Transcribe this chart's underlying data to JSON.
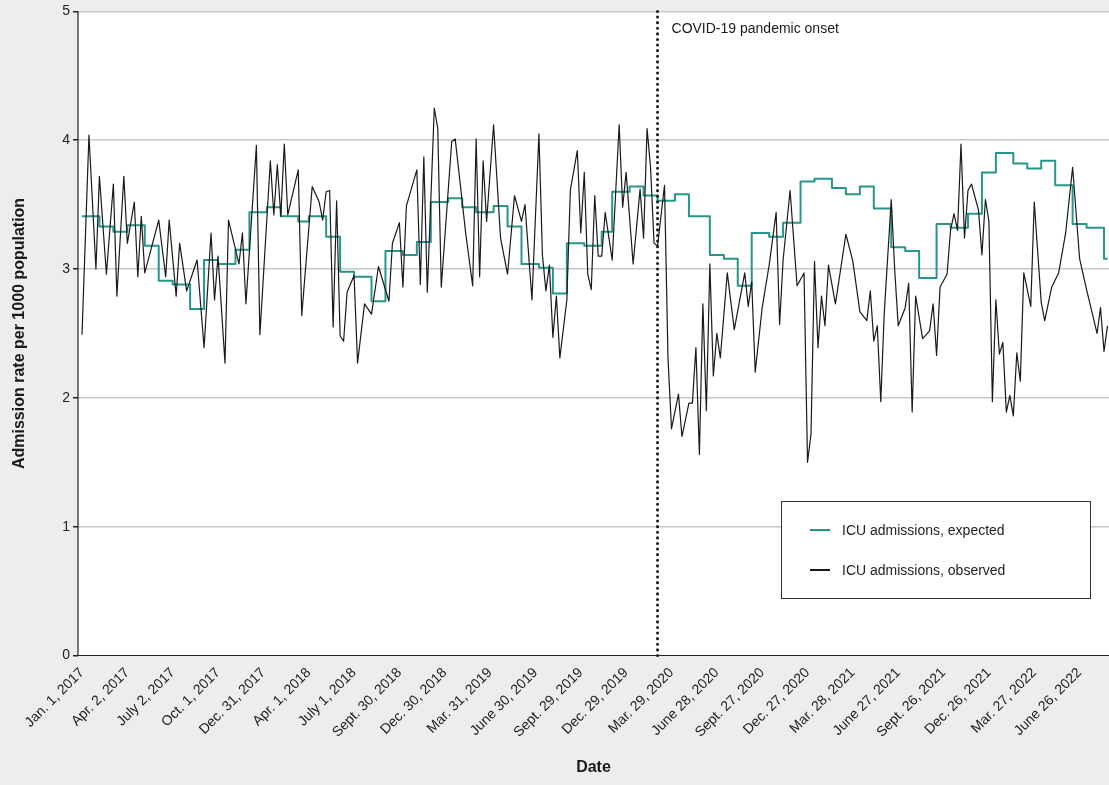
{
  "chart_data": {
    "type": "line",
    "xlabel": "Date",
    "ylabel": "Admission rate per 1000 population",
    "xlim": [
      "2016-12-24",
      "2022-08-24"
    ],
    "ylim": [
      0,
      5
    ],
    "yticks": [
      0,
      1,
      2,
      3,
      4,
      5
    ],
    "xticks": [
      {
        "value": "2017-01-01",
        "label": "Jan. 1, 2017"
      },
      {
        "value": "2017-04-02",
        "label": "Apr. 2, 2017"
      },
      {
        "value": "2017-07-02",
        "label": "July 2, 2017"
      },
      {
        "value": "2017-10-01",
        "label": "Oct. 1, 2017"
      },
      {
        "value": "2017-12-31",
        "label": "Dec. 31, 2017"
      },
      {
        "value": "2018-04-01",
        "label": "Apr. 1, 2018"
      },
      {
        "value": "2018-07-01",
        "label": "July 1, 2018"
      },
      {
        "value": "2018-09-30",
        "label": "Sept. 30, 2018"
      },
      {
        "value": "2018-12-30",
        "label": "Dec. 30, 2018"
      },
      {
        "value": "2019-03-31",
        "label": "Mar. 31, 2019"
      },
      {
        "value": "2019-06-30",
        "label": "June 30, 2019"
      },
      {
        "value": "2019-09-29",
        "label": "Sept. 29, 2019"
      },
      {
        "value": "2019-12-29",
        "label": "Dec. 29, 2019"
      },
      {
        "value": "2020-03-29",
        "label": "Mar. 29, 2020"
      },
      {
        "value": "2020-06-28",
        "label": "June 28, 2020"
      },
      {
        "value": "2020-09-27",
        "label": "Sept. 27, 2020"
      },
      {
        "value": "2020-12-27",
        "label": "Dec. 27, 2020"
      },
      {
        "value": "2021-03-28",
        "label": "Mar. 28, 2021"
      },
      {
        "value": "2021-06-27",
        "label": "June 27, 2021"
      },
      {
        "value": "2021-09-26",
        "label": "Sept. 26, 2021"
      },
      {
        "value": "2021-12-26",
        "label": "Dec. 26, 2021"
      },
      {
        "value": "2022-03-27",
        "label": "Mar. 27, 2022"
      },
      {
        "value": "2022-06-26",
        "label": "June 26, 2022"
      }
    ],
    "grid": "y",
    "legend": "bottom right",
    "marker": "none",
    "line_style": "solid",
    "ref_lines": [
      {
        "axis": "x",
        "value": "2020-03-01",
        "label": "COVID-19 pandemic onset",
        "line_style": "dotted",
        "color": "#1a1a1a"
      }
    ],
    "series": [
      {
        "name": "ICU admissions, expected",
        "type": "step",
        "color": "#26968c",
        "x": [
          "2017-01-01",
          "2017-02-05",
          "2017-03-05",
          "2017-04-02",
          "2017-05-07",
          "2017-06-04",
          "2017-07-02",
          "2017-08-06",
          "2017-09-03",
          "2017-10-01",
          "2017-11-05",
          "2017-12-03",
          "2018-01-07",
          "2018-02-04",
          "2018-03-11",
          "2018-04-01",
          "2018-05-06",
          "2018-06-03",
          "2018-07-01",
          "2018-08-05",
          "2018-09-02",
          "2018-10-07",
          "2018-11-04",
          "2018-12-02",
          "2019-01-06",
          "2019-02-03",
          "2019-03-03",
          "2019-04-07",
          "2019-05-05",
          "2019-06-02",
          "2019-07-07",
          "2019-08-04",
          "2019-09-01",
          "2019-10-06",
          "2019-11-10",
          "2019-12-01",
          "2020-01-05",
          "2020-02-02",
          "2020-03-01",
          "2020-04-05",
          "2020-05-03",
          "2020-06-14",
          "2020-07-12",
          "2020-08-09",
          "2020-09-06",
          "2020-10-11",
          "2020-11-08",
          "2020-12-13",
          "2021-01-10",
          "2021-02-14",
          "2021-03-14",
          "2021-04-11",
          "2021-05-09",
          "2021-06-13",
          "2021-07-11",
          "2021-08-08",
          "2021-09-12",
          "2021-10-10",
          "2021-11-14",
          "2021-12-12",
          "2022-01-09",
          "2022-02-13",
          "2022-03-13",
          "2022-04-10",
          "2022-05-08",
          "2022-06-12",
          "2022-07-10",
          "2022-08-14",
          "2022-08-21"
        ],
        "values": [
          3.41,
          3.33,
          3.29,
          3.34,
          3.18,
          2.91,
          2.88,
          2.69,
          3.07,
          3.04,
          3.15,
          3.44,
          3.48,
          3.41,
          3.37,
          3.41,
          3.25,
          2.98,
          2.94,
          2.75,
          3.14,
          3.11,
          3.21,
          3.52,
          3.55,
          3.48,
          3.44,
          3.49,
          3.33,
          3.04,
          3.01,
          2.81,
          3.2,
          3.18,
          3.29,
          3.6,
          3.64,
          3.57,
          3.53,
          3.58,
          3.41,
          3.11,
          3.08,
          2.87,
          3.28,
          3.25,
          3.36,
          3.68,
          3.7,
          3.63,
          3.58,
          3.64,
          3.47,
          3.17,
          3.14,
          2.93,
          3.35,
          3.32,
          3.43,
          3.75,
          3.9,
          3.82,
          3.78,
          3.84,
          3.65,
          3.35,
          3.32,
          3.08,
          3.08
        ]
      },
      {
        "name": "ICU admissions, observed",
        "type": "line",
        "color": "#1a1a1a",
        "x": [
          "2017-01-01",
          "2017-01-15",
          "2017-01-29",
          "2017-02-05",
          "2017-02-19",
          "2017-03-05",
          "2017-03-12",
          "2017-03-26",
          "2017-04-02",
          "2017-04-16",
          "2017-04-23",
          "2017-04-30",
          "2017-05-07",
          "2017-06-04",
          "2017-06-18",
          "2017-06-25",
          "2017-07-09",
          "2017-07-16",
          "2017-07-30",
          "2017-08-20",
          "2017-09-03",
          "2017-09-17",
          "2017-09-24",
          "2017-10-01",
          "2017-10-15",
          "2017-10-22",
          "2017-11-12",
          "2017-11-19",
          "2017-11-26",
          "2017-12-17",
          "2017-12-24",
          "2018-01-14",
          "2018-01-21",
          "2018-01-28",
          "2018-02-04",
          "2018-02-11",
          "2018-02-18",
          "2018-03-11",
          "2018-03-18",
          "2018-04-08",
          "2018-04-22",
          "2018-04-29",
          "2018-05-06",
          "2018-05-13",
          "2018-05-20",
          "2018-05-27",
          "2018-06-03",
          "2018-06-10",
          "2018-06-17",
          "2018-07-01",
          "2018-07-08",
          "2018-07-22",
          "2018-08-05",
          "2018-08-19",
          "2018-09-09",
          "2018-09-16",
          "2018-09-30",
          "2018-10-07",
          "2018-10-14",
          "2018-11-04",
          "2018-11-11",
          "2018-11-18",
          "2018-11-25",
          "2018-12-09",
          "2018-12-16",
          "2018-12-23",
          "2019-01-13",
          "2019-01-20",
          "2019-02-10",
          "2019-02-24",
          "2019-03-03",
          "2019-03-10",
          "2019-03-17",
          "2019-03-24",
          "2019-04-07",
          "2019-04-21",
          "2019-05-05",
          "2019-05-19",
          "2019-06-02",
          "2019-06-09",
          "2019-06-23",
          "2019-07-07",
          "2019-07-14",
          "2019-07-21",
          "2019-07-28",
          "2019-08-04",
          "2019-08-11",
          "2019-08-18",
          "2019-09-01",
          "2019-09-08",
          "2019-09-22",
          "2019-09-29",
          "2019-10-06",
          "2019-10-13",
          "2019-10-20",
          "2019-10-27",
          "2019-11-03",
          "2019-11-10",
          "2019-11-17",
          "2019-12-01",
          "2019-12-15",
          "2019-12-22",
          "2019-12-29",
          "2020-01-12",
          "2020-01-26",
          "2020-02-02",
          "2020-02-09",
          "2020-02-16",
          "2020-02-23",
          "2020-03-01",
          "2020-03-15",
          "2020-03-22",
          "2020-03-29",
          "2020-04-12",
          "2020-04-19",
          "2020-05-03",
          "2020-05-10",
          "2020-05-17",
          "2020-05-24",
          "2020-05-31",
          "2020-06-07",
          "2020-06-14",
          "2020-06-21",
          "2020-06-28",
          "2020-07-05",
          "2020-07-19",
          "2020-08-02",
          "2020-08-23",
          "2020-08-30",
          "2020-09-06",
          "2020-09-13",
          "2020-09-27",
          "2020-10-11",
          "2020-10-25",
          "2020-11-01",
          "2020-11-08",
          "2020-11-22",
          "2020-12-06",
          "2020-12-20",
          "2020-12-27",
          "2021-01-03",
          "2021-01-10",
          "2021-01-17",
          "2021-01-24",
          "2021-01-31",
          "2021-02-07",
          "2021-02-21",
          "2021-03-14",
          "2021-03-28",
          "2021-04-11",
          "2021-04-25",
          "2021-05-02",
          "2021-05-09",
          "2021-05-16",
          "2021-05-23",
          "2021-05-30",
          "2021-06-13",
          "2021-06-20",
          "2021-06-27",
          "2021-07-11",
          "2021-07-18",
          "2021-07-25",
          "2021-08-01",
          "2021-08-15",
          "2021-08-29",
          "2021-09-05",
          "2021-09-12",
          "2021-09-19",
          "2021-10-03",
          "2021-10-10",
          "2021-10-17",
          "2021-10-24",
          "2021-10-31",
          "2021-11-07",
          "2021-11-14",
          "2021-11-21",
          "2021-12-05",
          "2021-12-12",
          "2021-12-19",
          "2021-12-26",
          "2022-01-02",
          "2022-01-09",
          "2022-01-16",
          "2022-01-23",
          "2022-01-30",
          "2022-02-06",
          "2022-02-13",
          "2022-02-20",
          "2022-02-27",
          "2022-03-06",
          "2022-03-20",
          "2022-03-27",
          "2022-04-10",
          "2022-04-17",
          "2022-05-01",
          "2022-05-15",
          "2022-05-29",
          "2022-06-12",
          "2022-06-26",
          "2022-07-10",
          "2022-07-31",
          "2022-08-07",
          "2022-08-14",
          "2022-08-21"
        ],
        "values": [
          2.49,
          4.04,
          3.0,
          3.72,
          2.96,
          3.66,
          2.79,
          3.72,
          3.2,
          3.52,
          2.94,
          3.41,
          2.97,
          3.38,
          2.94,
          3.38,
          2.79,
          3.2,
          2.83,
          3.07,
          2.39,
          3.28,
          2.76,
          3.1,
          2.27,
          3.38,
          3.04,
          3.28,
          2.73,
          3.96,
          2.49,
          3.84,
          3.42,
          3.81,
          3.41,
          3.97,
          3.42,
          3.77,
          2.64,
          3.64,
          3.52,
          3.38,
          3.6,
          3.61,
          2.55,
          3.53,
          2.48,
          2.44,
          2.82,
          2.95,
          2.27,
          2.73,
          2.65,
          3.02,
          2.75,
          3.2,
          3.36,
          2.86,
          3.49,
          3.77,
          2.88,
          3.87,
          2.82,
          4.25,
          4.09,
          2.86,
          3.99,
          4.01,
          3.28,
          2.87,
          4.01,
          2.94,
          3.84,
          3.37,
          4.12,
          3.24,
          2.96,
          3.57,
          3.37,
          3.5,
          2.76,
          4.05,
          3.11,
          2.83,
          3.03,
          2.47,
          2.79,
          2.31,
          2.76,
          3.61,
          3.92,
          3.28,
          3.75,
          2.96,
          2.84,
          3.57,
          3.1,
          3.1,
          3.44,
          3.07,
          4.12,
          3.48,
          3.75,
          3.04,
          3.62,
          3.24,
          4.09,
          3.79,
          3.2,
          3.18,
          3.65,
          2.31,
          1.76,
          2.03,
          1.7,
          1.96,
          1.96,
          2.39,
          1.56,
          2.73,
          1.9,
          3.04,
          2.17,
          2.5,
          2.31,
          2.97,
          2.53,
          2.97,
          2.71,
          2.9,
          2.2,
          2.7,
          3.03,
          3.44,
          2.57,
          3.07,
          3.61,
          2.87,
          2.97,
          1.5,
          1.72,
          3.06,
          2.39,
          2.79,
          2.56,
          3.03,
          2.73,
          3.27,
          3.06,
          2.67,
          2.6,
          2.83,
          2.44,
          2.56,
          1.97,
          2.66,
          3.54,
          2.99,
          2.56,
          2.7,
          2.89,
          1.89,
          2.79,
          2.46,
          2.52,
          2.73,
          2.33,
          2.86,
          2.96,
          3.3,
          3.43,
          3.3,
          3.97,
          3.24,
          3.61,
          3.66,
          3.46,
          3.11,
          3.54,
          3.37,
          1.97,
          2.76,
          2.34,
          2.43,
          1.89,
          2.02,
          1.86,
          2.35,
          2.13,
          2.97,
          2.71,
          3.52,
          2.74,
          2.6,
          2.86,
          2.97,
          3.28,
          3.79,
          3.08,
          2.84,
          2.5,
          2.7,
          2.36,
          2.56
        ]
      }
    ]
  }
}
